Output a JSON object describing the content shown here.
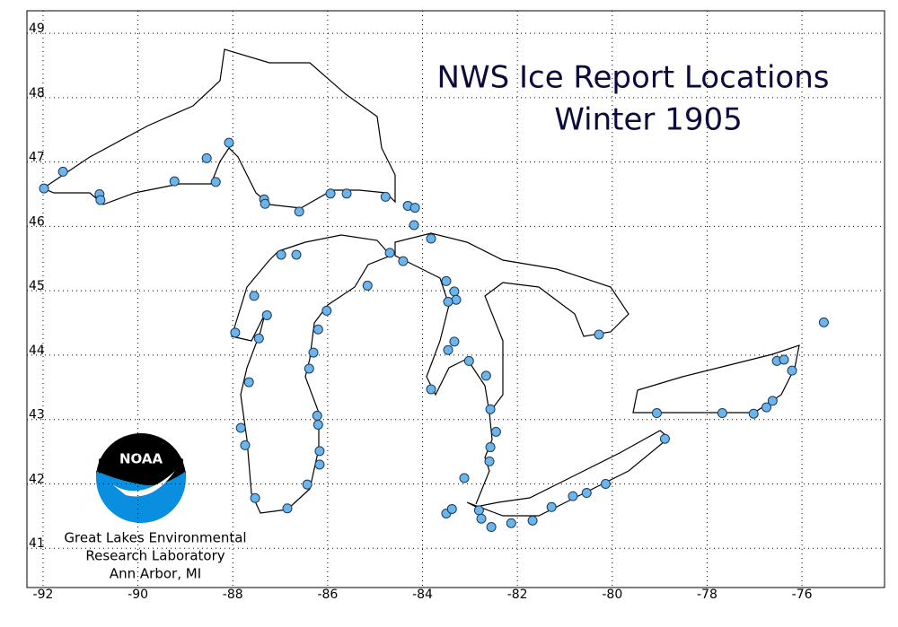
{
  "chart_data": {
    "type": "scatter",
    "title": [
      "NWS Ice Report Locations",
      "Winter 1905"
    ],
    "logo_text": "NOAA",
    "credit": [
      "Great Lakes Environmental",
      "Research Laboratory",
      "Ann Arbor, MI"
    ],
    "color": "#6cb4ec",
    "grid": true,
    "xlim": [
      -92.34,
      -74.26
    ],
    "ylim": [
      40.39,
      49.35
    ],
    "xticks": [
      -92,
      -90,
      -88,
      -86,
      -84,
      -82,
      -80,
      -78,
      -76
    ],
    "yticks": [
      41,
      42,
      43,
      44,
      45,
      46,
      47,
      48,
      49
    ],
    "x": [
      -91.98,
      -91.58,
      -90.81,
      -90.79,
      -89.23,
      -88.55,
      -88.08,
      -88.36,
      -87.34,
      -87.32,
      -86.6,
      -85.94,
      -85.6,
      -84.78,
      -84.31,
      -84.16,
      -84.18,
      -83.82,
      -86.98,
      -86.66,
      -87.55,
      -87.95,
      -87.28,
      -87.45,
      -87.66,
      -87.83,
      -87.74,
      -87.53,
      -86.85,
      -86.43,
      -86.17,
      -86.17,
      -86.2,
      -86.22,
      -86.39,
      -86.3,
      -86.2,
      -86.02,
      -85.16,
      -84.69,
      -84.41,
      -83.5,
      -83.33,
      -83.29,
      -83.46,
      -83.33,
      -83.46,
      -83.02,
      -82.66,
      -83.82,
      -82.57,
      -82.45,
      -82.57,
      -82.59,
      -83.12,
      -80.28,
      -75.54,
      -83.5,
      -83.38,
      -82.81,
      -82.76,
      -82.55,
      -82.13,
      -81.68,
      -81.28,
      -80.83,
      -80.54,
      -80.14,
      -78.89,
      -79.06,
      -77.68,
      -77.02,
      -76.75,
      -76.62,
      -76.53,
      -76.38,
      -76.21
    ],
    "y": [
      46.59,
      46.85,
      46.5,
      46.41,
      46.7,
      47.06,
      47.3,
      46.69,
      46.42,
      46.35,
      46.23,
      46.51,
      46.51,
      46.46,
      46.32,
      46.29,
      46.02,
      45.81,
      45.56,
      45.56,
      44.92,
      44.35,
      44.62,
      44.26,
      43.58,
      42.87,
      42.6,
      41.78,
      41.62,
      41.99,
      42.3,
      42.51,
      42.92,
      43.06,
      43.79,
      44.04,
      44.4,
      44.69,
      45.08,
      45.59,
      45.46,
      45.15,
      44.99,
      44.86,
      44.83,
      44.21,
      44.08,
      43.91,
      43.68,
      43.47,
      43.16,
      42.81,
      42.57,
      42.35,
      42.09,
      44.32,
      44.51,
      41.54,
      41.61,
      41.59,
      41.46,
      41.33,
      41.39,
      41.43,
      41.64,
      41.81,
      41.86,
      42.0,
      42.7,
      43.1,
      43.1,
      43.09,
      43.19,
      43.29,
      43.91,
      43.93,
      43.76
    ]
  }
}
